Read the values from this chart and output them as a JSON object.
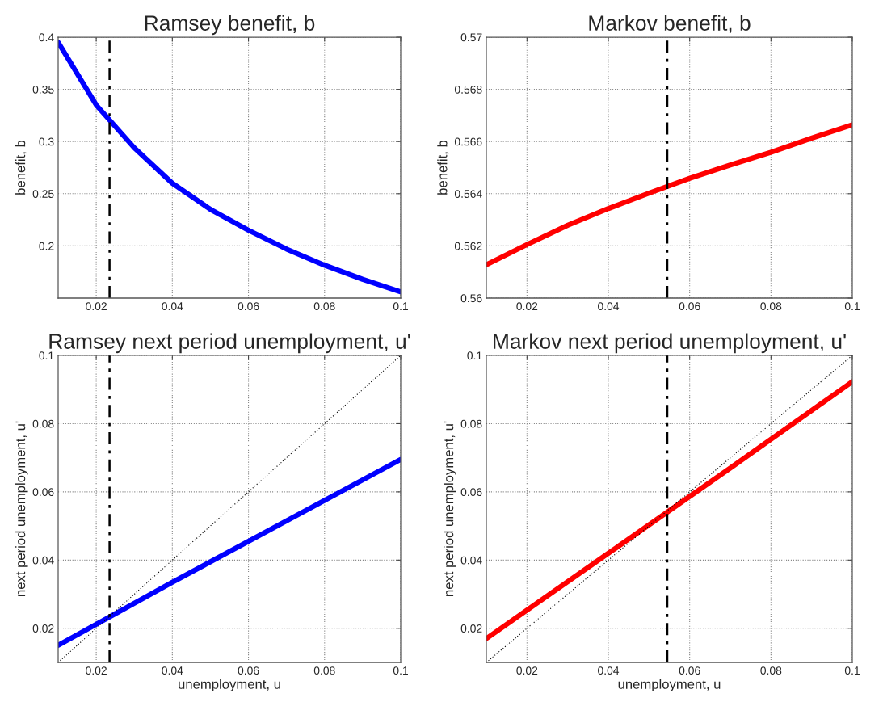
{
  "chart_data": [
    {
      "type": "line",
      "title": "Ramsey benefit, b",
      "ylabel": "benefit, b",
      "xlim": [
        0.01,
        0.1
      ],
      "xticks": [
        0.02,
        0.04,
        0.06,
        0.08,
        0.1
      ],
      "ylim": [
        0.15,
        0.4
      ],
      "yticks": [
        0.2,
        0.25,
        0.3,
        0.35,
        0.4
      ],
      "grid": true,
      "x": [
        0.01,
        0.02,
        0.03,
        0.04,
        0.05,
        0.06,
        0.07,
        0.08,
        0.09,
        0.1
      ],
      "series": [
        {
          "color": "#0000ff",
          "values": [
            0.395,
            0.335,
            0.294,
            0.26,
            0.235,
            0.215,
            0.197,
            0.1815,
            0.168,
            0.156
          ]
        }
      ],
      "ref_lines": [
        {
          "axis": "x",
          "value": 0.0235,
          "color": "#000000",
          "line_style": "dashed"
        }
      ]
    },
    {
      "type": "line",
      "title": "Markov benefit, b",
      "ylabel": "benefit, b",
      "xlim": [
        0.01,
        0.1
      ],
      "xticks": [
        0.02,
        0.04,
        0.06,
        0.08,
        0.1
      ],
      "ylim": [
        0.56,
        0.57
      ],
      "yticks": [
        0.56,
        0.562,
        0.564,
        0.566,
        0.568,
        0.57
      ],
      "grid": true,
      "x": [
        0.01,
        0.02,
        0.03,
        0.04,
        0.05,
        0.06,
        0.07,
        0.08,
        0.09,
        0.1
      ],
      "series": [
        {
          "color": "#ff0000",
          "values": [
            0.56128,
            0.56205,
            0.56279,
            0.56343,
            0.56402,
            0.56459,
            0.5651,
            0.56559,
            0.56613,
            0.56664
          ]
        }
      ],
      "ref_lines": [
        {
          "axis": "x",
          "value": 0.0545,
          "color": "#000000",
          "line_style": "dashed"
        }
      ]
    },
    {
      "type": "line",
      "title": "Ramsey next period unemployment, u'",
      "xlabel": "unemployment, u",
      "ylabel": "next period unemployment, u'",
      "xlim": [
        0.01,
        0.1
      ],
      "xticks": [
        0.02,
        0.04,
        0.06,
        0.08,
        0.1
      ],
      "ylim": [
        0.01,
        0.1
      ],
      "yticks": [
        0.02,
        0.04,
        0.06,
        0.08,
        0.1
      ],
      "grid": true,
      "series": [
        {
          "color": "#0000ff",
          "x": [
            0.01,
            0.04,
            0.07,
            0.1
          ],
          "values": [
            0.015,
            0.0335,
            0.0515,
            0.0695
          ]
        },
        {
          "color": "#000000",
          "line_style": "dotted",
          "x": [
            0.01,
            0.1
          ],
          "values": [
            0.01,
            0.1
          ]
        }
      ],
      "ref_lines": [
        {
          "axis": "x",
          "value": 0.0235,
          "color": "#000000",
          "line_style": "dashed"
        }
      ]
    },
    {
      "type": "line",
      "title": "Markov next period unemployment, u'",
      "xlabel": "unemployment, u",
      "ylabel": "next period unemployment, u'",
      "xlim": [
        0.01,
        0.1
      ],
      "xticks": [
        0.02,
        0.04,
        0.06,
        0.08,
        0.1
      ],
      "ylim": [
        0.01,
        0.1
      ],
      "yticks": [
        0.02,
        0.04,
        0.06,
        0.08,
        0.1
      ],
      "grid": true,
      "series": [
        {
          "color": "#ff0000",
          "x": [
            0.01,
            0.04,
            0.07,
            0.1
          ],
          "values": [
            0.017,
            0.042,
            0.067,
            0.0923
          ]
        },
        {
          "color": "#000000",
          "line_style": "dotted",
          "x": [
            0.01,
            0.1
          ],
          "values": [
            0.01,
            0.1
          ]
        }
      ],
      "ref_lines": [
        {
          "axis": "x",
          "value": 0.0545,
          "color": "#000000",
          "line_style": "dashed"
        }
      ]
    }
  ]
}
